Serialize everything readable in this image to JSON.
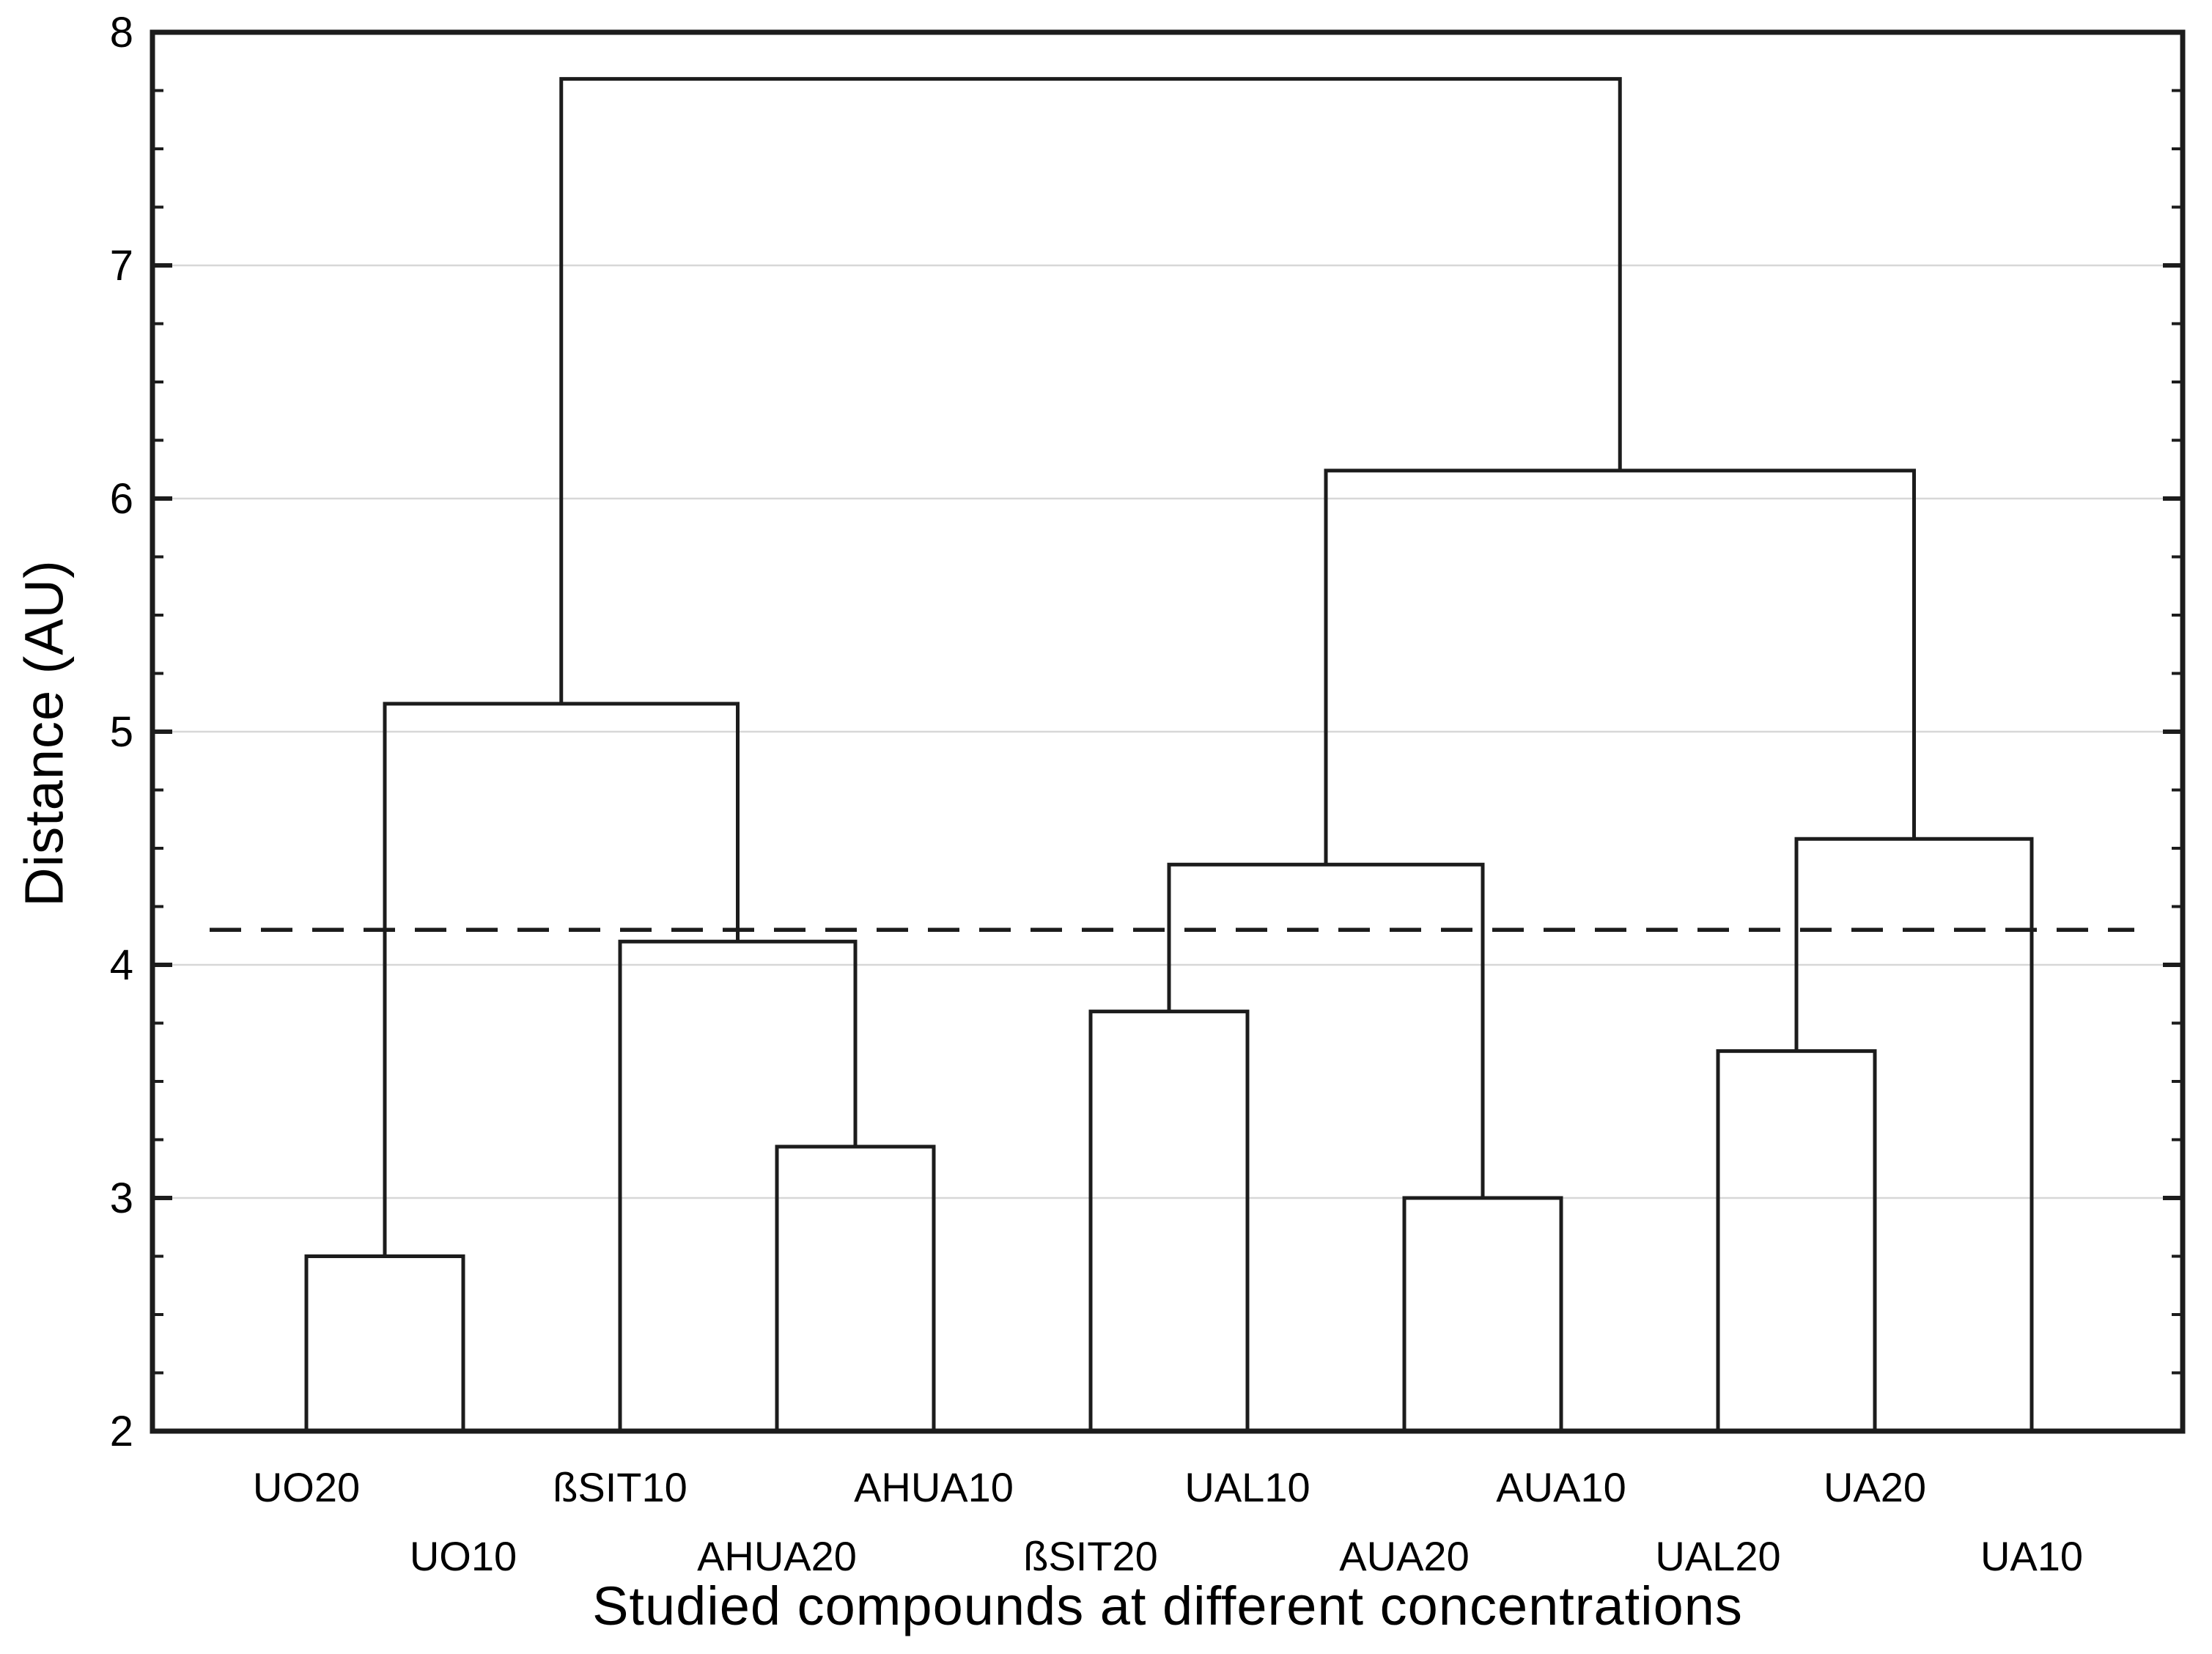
{
  "figure": {
    "background": "#ffffff",
    "line_color": "#1c1c1c",
    "grid_color": "#d7d7d7",
    "text_color": "#000000"
  },
  "chart_data": {
    "type": "dendrogram",
    "title": "",
    "xlabel": "Studied compounds at different concentrations",
    "ylabel": "Distance (AU)",
    "ylim": [
      2,
      8
    ],
    "yticks": [
      2,
      3,
      4,
      5,
      6,
      7,
      8
    ],
    "minor_tick_step": 0.25,
    "grid": "horizontal gridlines at integer ticks",
    "legend": "none",
    "leaves": [
      "UO20",
      "UO10",
      "ßSIT10",
      "AHUA20",
      "AHUA10",
      "ßSIT20",
      "UAL10",
      "AUA20",
      "AUA10",
      "UAL20",
      "UA20",
      "UA10"
    ],
    "leaf_label_layout": "alternating two rows (odd leaves upper row, even leaves lower row)",
    "merges": [
      {
        "id": "M1",
        "children": [
          "UO20",
          "UO10"
        ],
        "height": 2.75
      },
      {
        "id": "M2",
        "children": [
          "AHUA20",
          "AHUA10"
        ],
        "height": 3.22
      },
      {
        "id": "M3",
        "children": [
          "ßSIT10",
          "M2"
        ],
        "height": 4.1
      },
      {
        "id": "M4",
        "children": [
          "M1",
          "M3"
        ],
        "height": 5.12
      },
      {
        "id": "M5",
        "children": [
          "ßSIT20",
          "UAL10"
        ],
        "height": 3.8
      },
      {
        "id": "M6",
        "children": [
          "AUA20",
          "AUA10"
        ],
        "height": 3.0
      },
      {
        "id": "M7",
        "children": [
          "M5",
          "M6"
        ],
        "height": 4.43
      },
      {
        "id": "M8",
        "children": [
          "UAL20",
          "UA20"
        ],
        "height": 3.63
      },
      {
        "id": "M9",
        "children": [
          "M8",
          "UA10"
        ],
        "height": 4.54
      },
      {
        "id": "M10",
        "children": [
          "M7",
          "M9"
        ],
        "height": 6.12
      },
      {
        "id": "M11",
        "children": [
          "M4",
          "M10"
        ],
        "height": 7.8
      }
    ],
    "threshold_line": {
      "value": 4.15,
      "style": "dashed"
    }
  }
}
